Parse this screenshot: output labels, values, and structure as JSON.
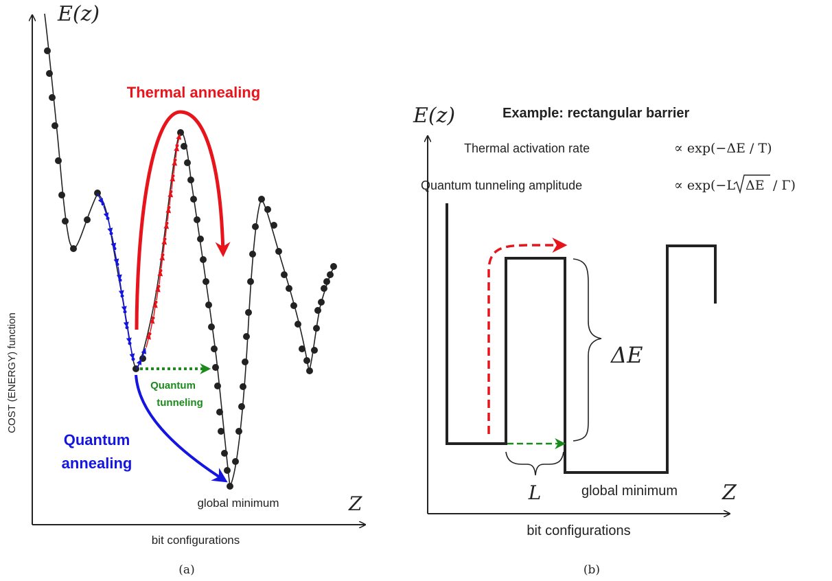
{
  "panel_a": {
    "energy_axis_label": "E(z)",
    "y_axis_label": "COST (ENERGY) function",
    "x_axis_label": "bit configurations",
    "z_label": "Z",
    "thermal_label": "Thermal  annealing",
    "quantum_annealing_line1": "Quantum",
    "quantum_annealing_line2": "annealing",
    "quantum_tunneling_line1": "Quantum",
    "quantum_tunneling_line2": "tunneling",
    "global_minimum_label": "global  minimum",
    "caption": "(a)"
  },
  "panel_b": {
    "energy_axis_label": "E(z)",
    "title": "Example: rectangular barrier",
    "thermal_rate_text": "Thermal activation rate",
    "thermal_rate_formula": "∝ exp(−ΔE / T)",
    "tunneling_text": "Quantum tunneling  amplitude",
    "tunneling_formula_prefix": "∝ exp(−L",
    "tunneling_formula_sqrt": "ΔE",
    "tunneling_formula_suffix": "/ Γ)",
    "delta_e_label": "ΔE",
    "width_label": "L",
    "global_minimum_label": "global  minimum",
    "z_label": "Z",
    "x_axis_label": "bit configurations",
    "caption": "(b)"
  },
  "colors": {
    "curve": "#222222",
    "thermal": "#e8141b",
    "quantum_annealing": "#1515e0",
    "quantum_tunneling": "#1a8a1a"
  }
}
